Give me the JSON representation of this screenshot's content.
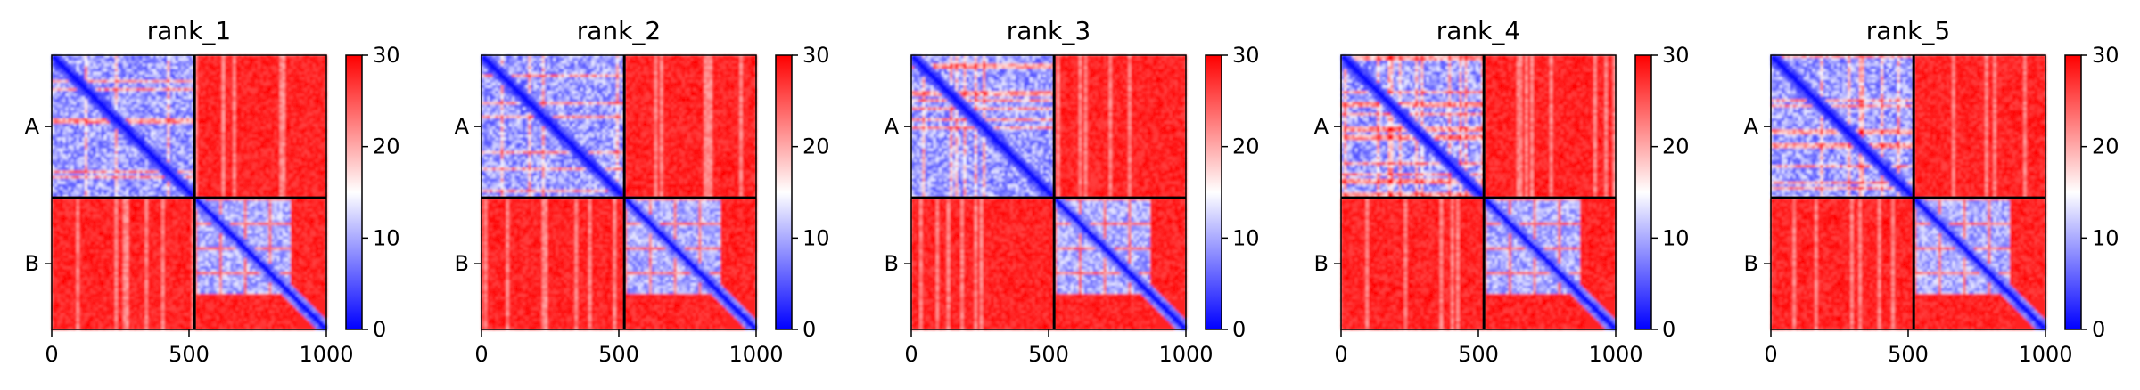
{
  "chart_data": {
    "type": "heatmap",
    "description_of_cells": "predicted aligned error matrix; low values blue, high values red, chain boundary near residue 520",
    "colorscale": {
      "low": "#0000ff",
      "mid": "#ffffff",
      "high": "#ff0000"
    },
    "value_range": [
      0,
      30
    ],
    "x_ticks": [
      "0",
      "500",
      "1000"
    ],
    "y_ticks": [
      "A",
      "B"
    ],
    "colorbar_ticks": [
      "0",
      "10",
      "20",
      "30"
    ],
    "chain_boundary": 520,
    "residue_count": 1000,
    "panels": [
      {
        "title": "rank_1"
      },
      {
        "title": "rank_2"
      },
      {
        "title": "rank_3"
      },
      {
        "title": "rank_4"
      },
      {
        "title": "rank_5"
      }
    ]
  }
}
